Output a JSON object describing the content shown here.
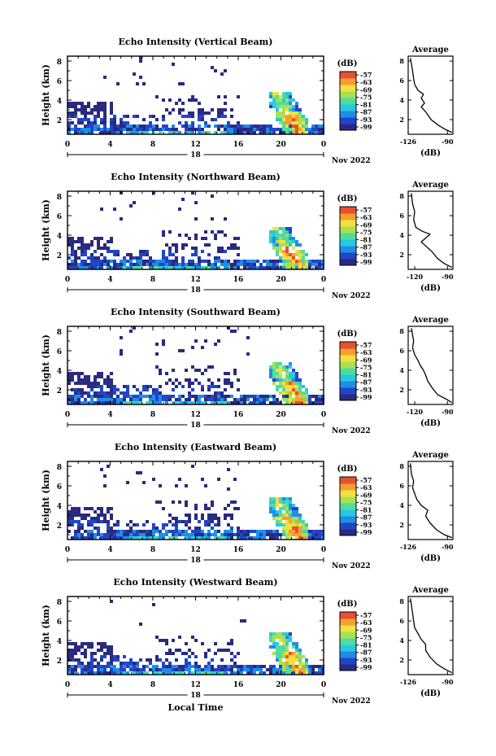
{
  "figure": {
    "bottom_xlabel": "Local Time",
    "date_label": "Nov 2022",
    "day_label": "18",
    "colorbar_unit": "(dB)",
    "colorbar_ticks": [
      "-57",
      "-63",
      "-69",
      "-75",
      "-81",
      "-87",
      "-93",
      "-99"
    ],
    "colorbar_colors": [
      "#2a2a80",
      "#2046c8",
      "#1e8ee6",
      "#28c8e0",
      "#50dca0",
      "#a8e050",
      "#f4e040",
      "#f4a030",
      "#e85030"
    ],
    "avg_title": "Average",
    "avg_xlabel": "(dB)"
  },
  "chart_data": [
    {
      "type": "heatmap",
      "title": "Echo Intensity (Vertical Beam)",
      "xlabel": "",
      "ylabel": "Height (km)",
      "x_ticks": [
        "0",
        "4",
        "8",
        "12",
        "16",
        "20",
        "0"
      ],
      "y_ticks": [
        "2",
        "4",
        "6",
        "8"
      ],
      "xlim": [
        0,
        24
      ],
      "ylim": [
        0.5,
        8.5
      ],
      "colorbar": {
        "unit": "(dB)",
        "range": [
          -99,
          -57
        ]
      },
      "average": {
        "title": "Average",
        "xlabel": "(dB)",
        "x_ticks": [
          "-126",
          "-90"
        ],
        "y_ticks": [
          "2",
          "4",
          "6",
          "8"
        ],
        "xlim": [
          -126,
          -85
        ],
        "ylim": [
          0.5,
          8.5
        ],
        "profile": [
          [
            -86,
            0.7
          ],
          [
            -92,
            1.0
          ],
          [
            -98,
            1.4
          ],
          [
            -105,
            2.0
          ],
          [
            -110,
            2.8
          ],
          [
            -114,
            3.3
          ],
          [
            -111,
            3.7
          ],
          [
            -114,
            4.2
          ],
          [
            -112,
            4.6
          ],
          [
            -117,
            5.0
          ],
          [
            -120,
            5.6
          ],
          [
            -121,
            6.2
          ],
          [
            -122,
            7.0
          ],
          [
            -124,
            8.3
          ]
        ]
      }
    },
    {
      "type": "heatmap",
      "title": "Echo Intensity (Northward Beam)",
      "xlabel": "",
      "ylabel": "Height (km)",
      "x_ticks": [
        "0",
        "4",
        "8",
        "12",
        "16",
        "20",
        "0"
      ],
      "y_ticks": [
        "2",
        "4",
        "6",
        "8"
      ],
      "xlim": [
        0,
        24
      ],
      "ylim": [
        0.5,
        8.5
      ],
      "colorbar": {
        "unit": "(dB)",
        "range": [
          -99,
          -57
        ]
      },
      "average": {
        "title": "Average",
        "xlabel": "(dB)",
        "x_ticks": [
          "-120",
          "-90"
        ],
        "y_ticks": [
          "2",
          "4",
          "6",
          "8"
        ],
        "xlim": [
          -126,
          -85
        ],
        "ylim": [
          0.5,
          8.5
        ],
        "profile": [
          [
            -86,
            0.7
          ],
          [
            -93,
            1.1
          ],
          [
            -99,
            1.6
          ],
          [
            -104,
            2.3
          ],
          [
            -110,
            2.9
          ],
          [
            -114,
            3.3
          ],
          [
            -109,
            3.8
          ],
          [
            -106,
            4.1
          ],
          [
            -113,
            4.4
          ],
          [
            -119,
            4.8
          ],
          [
            -121,
            5.6
          ],
          [
            -120,
            6.4
          ],
          [
            -122,
            7.2
          ],
          [
            -123,
            8.3
          ]
        ]
      }
    },
    {
      "type": "heatmap",
      "title": "Echo Intensity (Southward Beam)",
      "xlabel": "",
      "ylabel": "Height (km)",
      "x_ticks": [
        "0",
        "4",
        "8",
        "12",
        "16",
        "20",
        "0"
      ],
      "y_ticks": [
        "2",
        "4",
        "6",
        "8"
      ],
      "xlim": [
        0,
        24
      ],
      "ylim": [
        0.5,
        8.5
      ],
      "colorbar": {
        "unit": "(dB)",
        "range": [
          -99,
          -57
        ]
      },
      "average": {
        "title": "Average",
        "xlabel": "(dB)",
        "x_ticks": [
          "-120",
          "-90"
        ],
        "y_ticks": [
          "2",
          "4",
          "6",
          "8"
        ],
        "xlim": [
          -126,
          -85
        ],
        "ylim": [
          0.5,
          8.5
        ],
        "profile": [
          [
            -86,
            0.7
          ],
          [
            -92,
            1.1
          ],
          [
            -99,
            1.5
          ],
          [
            -104,
            2.2
          ],
          [
            -108,
            2.9
          ],
          [
            -110,
            3.5
          ],
          [
            -112,
            4.0
          ],
          [
            -115,
            4.5
          ],
          [
            -117,
            5.0
          ],
          [
            -120,
            5.6
          ],
          [
            -122,
            6.3
          ],
          [
            -121,
            7.0
          ],
          [
            -123,
            8.3
          ]
        ]
      }
    },
    {
      "type": "heatmap",
      "title": "Echo Intensity (Eastward Beam)",
      "xlabel": "",
      "ylabel": "Height (km)",
      "x_ticks": [
        "0",
        "4",
        "8",
        "12",
        "16",
        "20",
        "0"
      ],
      "y_ticks": [
        "2",
        "4",
        "6",
        "8"
      ],
      "xlim": [
        0,
        24
      ],
      "ylim": [
        0.5,
        8.5
      ],
      "colorbar": {
        "unit": "(dB)",
        "range": [
          -99,
          -57
        ]
      },
      "average": {
        "title": "Average",
        "xlabel": "(dB)",
        "x_ticks": [
          "-126",
          "-90"
        ],
        "y_ticks": [
          "2",
          "4",
          "6",
          "8"
        ],
        "xlim": [
          -126,
          -85
        ],
        "ylim": [
          0.5,
          8.5
        ],
        "profile": [
          [
            -86,
            0.7
          ],
          [
            -93,
            1.0
          ],
          [
            -100,
            1.5
          ],
          [
            -106,
            2.2
          ],
          [
            -110,
            2.9
          ],
          [
            -108,
            3.5
          ],
          [
            -114,
            4.0
          ],
          [
            -118,
            4.6
          ],
          [
            -120,
            5.2
          ],
          [
            -122,
            5.8
          ],
          [
            -121,
            6.5
          ],
          [
            -123,
            7.2
          ],
          [
            -124,
            8.3
          ]
        ]
      }
    },
    {
      "type": "heatmap",
      "title": "Echo Intensity (Westward Beam)",
      "xlabel": "Local Time",
      "ylabel": "Height (km)",
      "x_ticks": [
        "0",
        "4",
        "8",
        "12",
        "16",
        "20",
        "0"
      ],
      "y_ticks": [
        "2",
        "4",
        "6",
        "8"
      ],
      "xlim": [
        0,
        24
      ],
      "ylim": [
        0.5,
        8.5
      ],
      "colorbar": {
        "unit": "(dB)",
        "range": [
          -99,
          -57
        ]
      },
      "average": {
        "title": "Average",
        "xlabel": "(dB)",
        "x_ticks": [
          "-126",
          "-90"
        ],
        "y_ticks": [
          "2",
          "4",
          "6",
          "8"
        ],
        "xlim": [
          -126,
          -85
        ],
        "ylim": [
          0.5,
          8.5
        ],
        "profile": [
          [
            -86,
            0.7
          ],
          [
            -93,
            1.1
          ],
          [
            -100,
            1.6
          ],
          [
            -106,
            2.3
          ],
          [
            -110,
            3.0
          ],
          [
            -110,
            3.6
          ],
          [
            -114,
            4.1
          ],
          [
            -117,
            4.7
          ],
          [
            -120,
            5.3
          ],
          [
            -121,
            6.0
          ],
          [
            -122,
            6.8
          ],
          [
            -123,
            7.6
          ],
          [
            -124,
            8.3
          ]
        ]
      }
    }
  ]
}
